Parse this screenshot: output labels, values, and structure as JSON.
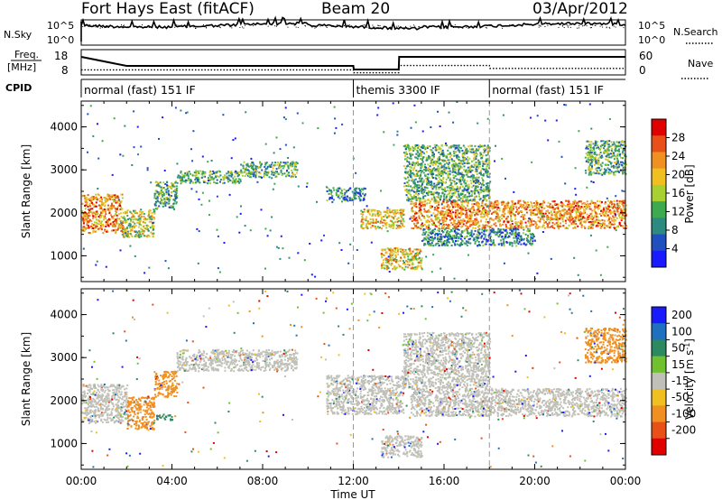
{
  "header": {
    "station": "Fort Hays East (fitACF)",
    "beam": "Beam 20",
    "date": "03/Apr/2012"
  },
  "noise_panel": {
    "left_label": "N.Sky",
    "right_label": "N.Search",
    "left_ticks": [
      "10^5",
      "10^0"
    ],
    "right_ticks": [
      "10^5",
      "10^0"
    ]
  },
  "freq_panel": {
    "left_label_top": "Freq.",
    "left_label_bottom": "[MHz]",
    "right_label": "Nave",
    "left_ticks": [
      "18",
      "8"
    ],
    "right_ticks": [
      "60",
      "0"
    ],
    "freq_steps": [
      [
        0,
        16.0
      ],
      [
        2.0,
        11.0
      ],
      [
        12.0,
        11.0
      ],
      [
        12.02,
        9.0
      ],
      [
        14.0,
        9.0
      ],
      [
        14.02,
        16.0
      ],
      [
        24,
        16.0
      ]
    ],
    "nave_steps": [
      [
        0,
        14
      ],
      [
        2.0,
        14
      ],
      [
        2.02,
        14
      ],
      [
        12.0,
        14
      ],
      [
        12.02,
        6
      ],
      [
        14.0,
        6
      ],
      [
        14.02,
        26
      ],
      [
        18.0,
        26
      ],
      [
        18.02,
        18
      ],
      [
        24,
        18
      ]
    ]
  },
  "cpid_panel": {
    "label": "CPID",
    "modes": [
      {
        "label": "normal (fast) 151 IF",
        "start": 0,
        "end": 12.0
      },
      {
        "label": "themis 3300 IF",
        "start": 12.0,
        "end": 18.0
      },
      {
        "label": "normal (fast) 151 IF",
        "start": 18.0,
        "end": 24
      }
    ]
  },
  "time_axis": {
    "label": "Time UT",
    "ticks": [
      "00:00",
      "04:00",
      "08:00",
      "12:00",
      "16:00",
      "20:00",
      "00:00"
    ],
    "range": [
      0,
      24
    ]
  },
  "chart_data": [
    {
      "type": "heatmap",
      "quantity": "power",
      "ylabel": "Slant Range [km]",
      "yticks": [
        "1000",
        "2000",
        "3000",
        "4000"
      ],
      "ylim": [
        400,
        4600
      ],
      "xlim": [
        0,
        24
      ],
      "colorbar": {
        "label": "Power [dB]",
        "ticks": [
          "4",
          "8",
          "12",
          "16",
          "20",
          "24",
          "28"
        ],
        "range": [
          0,
          32
        ],
        "colors": [
          "#1a1aff",
          "#2050c0",
          "#2d8a80",
          "#3daa50",
          "#a8d030",
          "#f0c020",
          "#f09020",
          "#e85018",
          "#e00000"
        ]
      },
      "echo_bands": [
        {
          "t": [
            0.0,
            1.8
          ],
          "r": [
            1550,
            2450
          ],
          "power": 22
        },
        {
          "t": [
            1.8,
            3.2
          ],
          "r": [
            1450,
            2100
          ],
          "power": 14
        },
        {
          "t": [
            3.2,
            4.2
          ],
          "r": [
            2100,
            2750
          ],
          "power": 12
        },
        {
          "t": [
            4.2,
            7.0
          ],
          "r": [
            2700,
            3000
          ],
          "power": 10
        },
        {
          "t": [
            7.0,
            9.5
          ],
          "r": [
            2850,
            3200
          ],
          "power": 13
        },
        {
          "t": [
            10.8,
            12.5
          ],
          "r": [
            2300,
            2600
          ],
          "power": 8
        },
        {
          "t": [
            12.3,
            14.2
          ],
          "r": [
            1650,
            2100
          ],
          "power": 20
        },
        {
          "t": [
            13.2,
            15.0
          ],
          "r": [
            700,
            1200
          ],
          "power": 18
        },
        {
          "t": [
            14.5,
            24.0
          ],
          "r": [
            1650,
            2300
          ],
          "power": 22
        },
        {
          "t": [
            15.0,
            20.0
          ],
          "r": [
            1250,
            1650
          ],
          "power": 8
        },
        {
          "t": [
            14.2,
            18.0
          ],
          "r": [
            2300,
            3600
          ],
          "power": 10
        },
        {
          "t": [
            22.2,
            24.0
          ],
          "r": [
            2900,
            3700
          ],
          "power": 12
        }
      ]
    },
    {
      "type": "heatmap",
      "quantity": "velocity",
      "ylabel": "Slant Range [km]",
      "yticks": [
        "1000",
        "2000",
        "3000",
        "4000"
      ],
      "ylim": [
        400,
        4600
      ],
      "xlim": [
        0,
        24
      ],
      "colorbar": {
        "label": "Velocity [m s",
        "label_sup": "-1",
        "label_end": "]",
        "ticks": [
          "200",
          "100",
          "50",
          "15",
          "-15",
          "-50",
          "-100",
          "-200"
        ],
        "colors": [
          "#1a1aff",
          "#2070c0",
          "#2d8a60",
          "#70c030",
          "#c0c0b8",
          "#f0c020",
          "#f09020",
          "#e85018",
          "#e00000"
        ]
      },
      "echo_bands": [
        {
          "t": [
            0.0,
            2.0
          ],
          "r": [
            1500,
            2400
          ],
          "velocity": 0
        },
        {
          "t": [
            2.0,
            3.2
          ],
          "r": [
            1350,
            2100
          ],
          "velocity": -60
        },
        {
          "t": [
            3.2,
            4.2
          ],
          "r": [
            2100,
            2700
          ],
          "velocity": -60
        },
        {
          "t": [
            4.2,
            9.5
          ],
          "r": [
            2700,
            3200
          ],
          "velocity": 0
        },
        {
          "t": [
            3.3,
            4.0
          ],
          "r": [
            1550,
            1700
          ],
          "velocity": 40
        },
        {
          "t": [
            10.8,
            14.2
          ],
          "r": [
            1700,
            2600
          ],
          "velocity": 0
        },
        {
          "t": [
            13.2,
            15.0
          ],
          "r": [
            700,
            1200
          ],
          "velocity": 0
        },
        {
          "t": [
            14.5,
            24.0
          ],
          "r": [
            1650,
            2300
          ],
          "velocity": 0
        },
        {
          "t": [
            14.2,
            18.0
          ],
          "r": [
            2300,
            3600
          ],
          "velocity": 0
        },
        {
          "t": [
            22.2,
            24.0
          ],
          "r": [
            2900,
            3700
          ],
          "velocity": -70
        }
      ]
    }
  ]
}
